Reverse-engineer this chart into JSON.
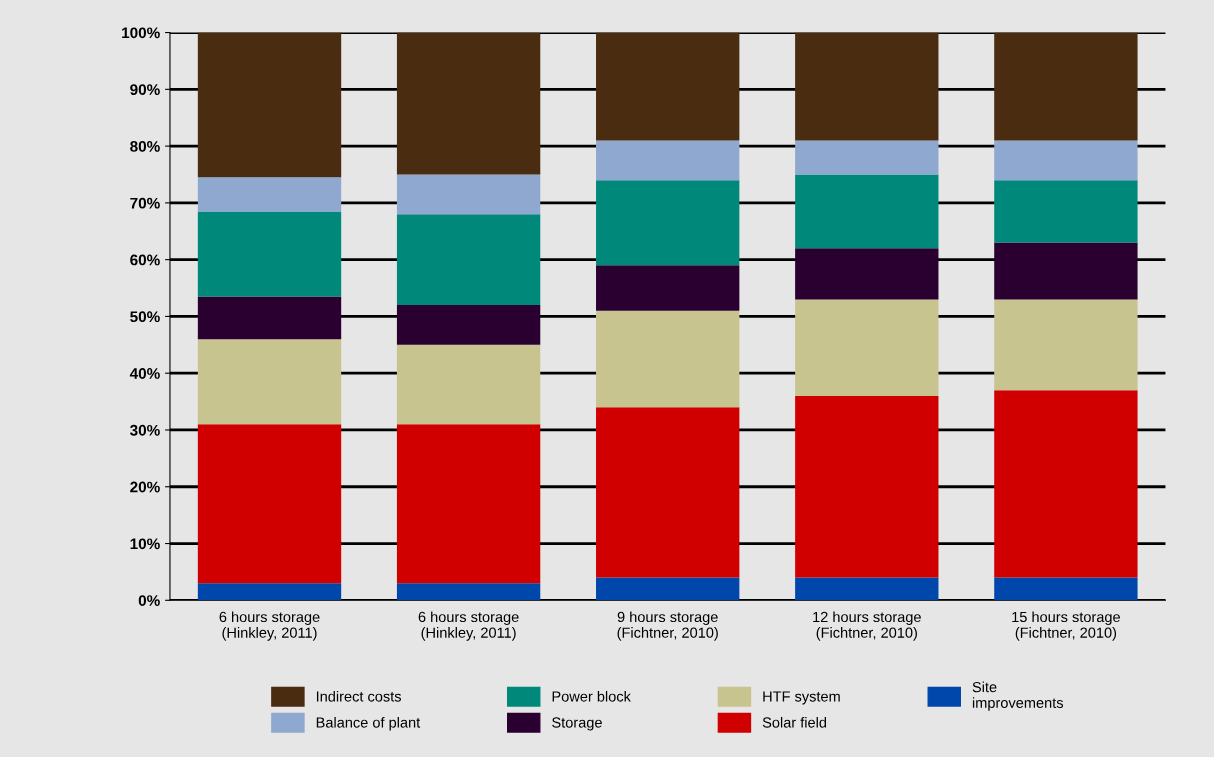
{
  "chart_data": {
    "type": "bar",
    "stacked": true,
    "categories": [
      "6 hours storage\n(Hinkley, 2011)",
      "6 hours storage\n(Hinkley, 2011)",
      "9 hours storage\n(Fichtner, 2010)",
      "12 hours storage\n(Fichtner, 2010)",
      "15 hours storage\n(Fichtner, 2010)"
    ],
    "series": [
      {
        "name": "Site\nimprovements",
        "color": "#0047ab",
        "values": [
          3,
          3,
          4,
          4,
          4
        ]
      },
      {
        "name": "Solar field",
        "color": "#d10000",
        "values": [
          28,
          28,
          30,
          32,
          33
        ]
      },
      {
        "name": "HTF system",
        "color": "#c8c490",
        "values": [
          15,
          14,
          17,
          17,
          16
        ]
      },
      {
        "name": "Storage",
        "color": "#2a0030",
        "values": [
          7.5,
          7,
          8,
          9,
          10
        ]
      },
      {
        "name": "Power block",
        "color": "#00897b",
        "values": [
          15,
          16,
          15,
          13,
          11
        ]
      },
      {
        "name": "Balance of plant",
        "color": "#8fa8d0",
        "values": [
          6,
          7,
          7,
          6,
          7
        ]
      },
      {
        "name": "Indirect costs",
        "color": "#4a2c10",
        "values": [
          25.5,
          25,
          19,
          19,
          19
        ]
      }
    ],
    "ylim": [
      0,
      100
    ],
    "yticks": [
      {
        "value": 0,
        "label": "0%"
      },
      {
        "value": 10,
        "label": "10%"
      },
      {
        "value": 20,
        "label": "20%"
      },
      {
        "value": 30,
        "label": "30%"
      },
      {
        "value": 40,
        "label": "40%"
      },
      {
        "value": 50,
        "label": "50%"
      },
      {
        "value": 60,
        "label": "60%"
      },
      {
        "value": 70,
        "label": "70%"
      },
      {
        "value": 80,
        "label": "80%"
      },
      {
        "value": 90,
        "label": "90%"
      },
      {
        "value": 100,
        "label": "100%"
      }
    ],
    "grid": "y",
    "legend": "bottom"
  }
}
